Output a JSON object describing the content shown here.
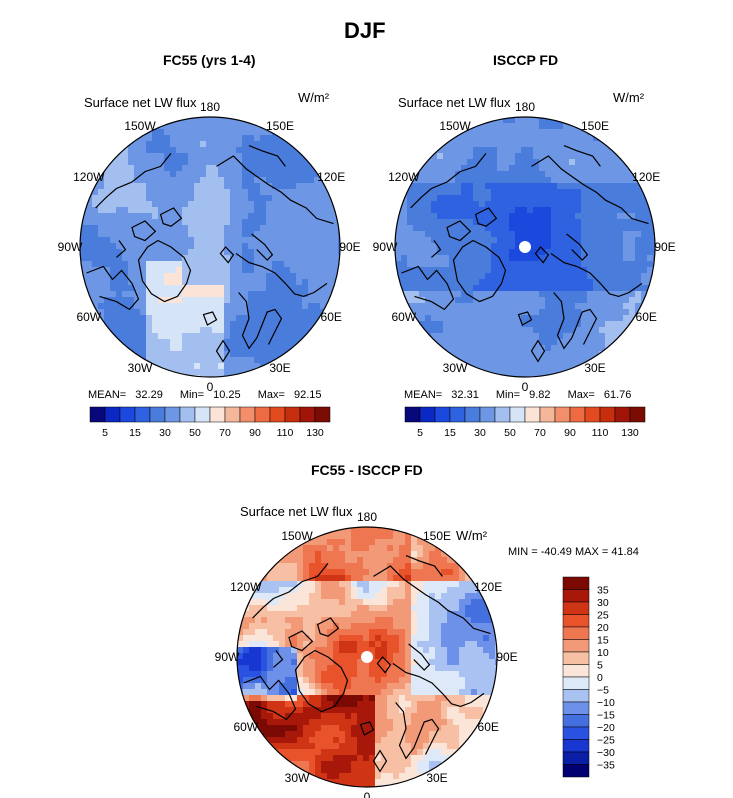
{
  "main_title": "DJF",
  "colors": {
    "seq": [
      "#08087a",
      "#0b27c4",
      "#1c49dd",
      "#2f62e0",
      "#4a7cdc",
      "#6d97e4",
      "#a2bff0",
      "#d6e4f7",
      "#fbe3d8",
      "#f5b79a",
      "#f28f6a",
      "#ee6a43",
      "#e44a1f",
      "#c72e0e",
      "#a01508",
      "#7a0c04"
    ],
    "diff_legend": [
      "#000070",
      "#0a1ea6",
      "#1836d0",
      "#2a52e2",
      "#4470df",
      "#6d90e8",
      "#a9c2f1",
      "#dde8f8",
      "#fbe5d8",
      "#f7c0a4",
      "#f29a78",
      "#ee7650",
      "#e8532b",
      "#cf3414",
      "#a8180a",
      "#7c0a04"
    ]
  },
  "panels": [
    {
      "subtitle": "FC55 (yrs 1-4)",
      "variable": "Surface net LW flux",
      "units": "W/m²",
      "lon_labels": {
        "180": "180",
        "150W": "150W",
        "150E": "150E",
        "120W": "120W",
        "120E": "120E",
        "90W": "90W",
        "90E": "90E",
        "60W": "60W",
        "60E": "60E",
        "30W": "30W",
        "30E": "30E",
        "0": "0"
      },
      "stats": {
        "mean_label": "MEAN=",
        "mean": "32.29",
        "min_label": "Min=",
        "min": "10.25",
        "max_label": "Max=",
        "max": "92.15"
      },
      "colorbar_labels": [
        "5",
        "15",
        "30",
        "50",
        "70",
        "90",
        "110",
        "130"
      ]
    },
    {
      "subtitle": "ISCCP FD",
      "variable": "Surface net LW flux",
      "units": "W/m²",
      "lon_labels": {
        "180": "180",
        "150W": "150W",
        "150E": "150E",
        "120W": "120W",
        "120E": "120E",
        "90W": "90W",
        "90E": "90E",
        "60W": "60W",
        "60E": "60E",
        "30W": "30W",
        "30E": "30E",
        "0": "0"
      },
      "stats": {
        "mean_label": "MEAN=",
        "mean": "32.31",
        "min_label": "Min=",
        "min": "9.82",
        "max_label": "Max=",
        "max": "61.76"
      },
      "colorbar_labels": [
        "5",
        "15",
        "30",
        "50",
        "70",
        "90",
        "110",
        "130"
      ]
    },
    {
      "subtitle": "FC55 - ISCCP FD",
      "variable": "Surface net LW flux",
      "units": "W/m²",
      "lon_labels": {
        "180": "180",
        "150W": "150W",
        "150E": "150E",
        "120W": "120W",
        "120E": "120E",
        "90W": "90W",
        "90E": "90E",
        "60W": "60W",
        "60E": "60E",
        "30W": "30W",
        "30E": "30E",
        "0": "0"
      },
      "stats_text": "MIN = -40.49 MAX =  41.84",
      "colorbar_labels": [
        "35",
        "30",
        "25",
        "20",
        "15",
        "10",
        "5",
        "0",
        "−5",
        "−10",
        "−15",
        "−20",
        "−25",
        "−30",
        "−35"
      ]
    }
  ]
}
